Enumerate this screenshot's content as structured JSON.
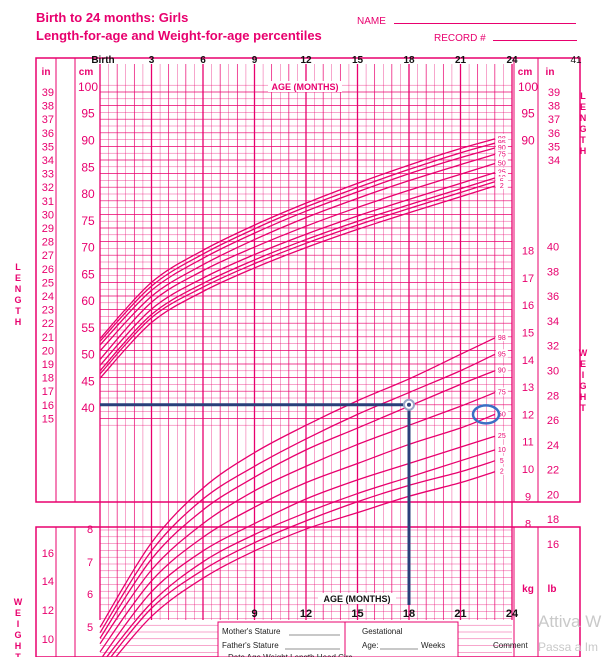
{
  "header": {
    "title_line1": "Birth to 24 months: Girls",
    "title_line2": "Length-for-age and Weight-for-age percentiles",
    "name_label": "NAME",
    "record_label": "RECORD #"
  },
  "chart_data": {
    "type": "line",
    "title": "Length-for-age and Weight-for-age percentiles",
    "x_axis": {
      "label": "AGE (MONTHS)",
      "range": [
        0,
        24
      ],
      "top_ticks": [
        "Birth",
        "3",
        "6",
        "9",
        "12",
        "15",
        "18",
        "21",
        "24"
      ],
      "bottom_ticks": [
        "9",
        "12",
        "15",
        "18",
        "21",
        "24"
      ]
    },
    "length_axis": {
      "cm_ticks": [
        "100",
        "95",
        "90",
        "85",
        "80",
        "75",
        "70",
        "65",
        "60",
        "55",
        "50",
        "45",
        "40"
      ],
      "in_ticks": [
        "39",
        "38",
        "37",
        "36",
        "35",
        "34",
        "33",
        "32",
        "31",
        "30",
        "29",
        "28",
        "27",
        "26",
        "25",
        "24",
        "23",
        "22",
        "21",
        "20",
        "19",
        "18",
        "17",
        "16",
        "15"
      ],
      "right_cm_ticks": [
        "100",
        "95",
        "90"
      ],
      "right_in_ticks": [
        "39",
        "38",
        "37",
        "36",
        "35",
        "34"
      ],
      "side_label": [
        "L",
        "E",
        "N",
        "G",
        "T",
        "H"
      ]
    },
    "weight_axis": {
      "kg_ticks": [
        "18",
        "17",
        "16",
        "15",
        "14",
        "13",
        "12",
        "11",
        "10",
        "9",
        "8",
        "7",
        "6",
        "5"
      ],
      "lb_ticks": [
        "40",
        "38",
        "36",
        "34",
        "32",
        "30",
        "28",
        "26",
        "24",
        "22",
        "20",
        "18",
        "16",
        "14",
        "12",
        "10"
      ],
      "right_kg_ticks": [
        "18",
        "17",
        "16",
        "15",
        "14",
        "13",
        "12",
        "11",
        "10",
        "9",
        "8"
      ],
      "right_lb_ticks": [
        "40",
        "38",
        "36",
        "34",
        "32",
        "30",
        "28",
        "26",
        "24",
        "22",
        "20",
        "18",
        "16"
      ],
      "unit_kg": "kg",
      "unit_lb": "lb",
      "unit_cm": "cm",
      "unit_in": "in",
      "side_label": [
        "W",
        "E",
        "I",
        "G",
        "H",
        "T"
      ]
    },
    "length_series": [
      {
        "name": "98",
        "x": [
          0,
          3,
          6,
          9,
          12,
          15,
          18,
          21,
          23
        ],
        "y": [
          53.0,
          63.5,
          69.5,
          74.2,
          78.3,
          82.0,
          85.4,
          88.5,
          90.3
        ]
      },
      {
        "name": "95",
        "x": [
          0,
          3,
          6,
          9,
          12,
          15,
          18,
          21,
          23
        ],
        "y": [
          52.5,
          62.8,
          68.8,
          73.5,
          77.6,
          81.2,
          84.6,
          87.7,
          89.5
        ]
      },
      {
        "name": "90",
        "x": [
          0,
          3,
          6,
          9,
          12,
          15,
          18,
          21,
          23
        ],
        "y": [
          51.8,
          62.0,
          68.0,
          72.7,
          76.8,
          80.4,
          83.8,
          86.8,
          88.6
        ]
      },
      {
        "name": "75",
        "x": [
          0,
          3,
          6,
          9,
          12,
          15,
          18,
          21,
          23
        ],
        "y": [
          50.7,
          60.9,
          66.8,
          71.5,
          75.6,
          79.2,
          82.5,
          85.5,
          87.4
        ]
      },
      {
        "name": "50",
        "x": [
          0,
          3,
          6,
          9,
          12,
          15,
          18,
          21,
          23
        ],
        "y": [
          49.1,
          59.8,
          65.7,
          70.1,
          74.0,
          77.5,
          80.7,
          83.7,
          85.7
        ]
      },
      {
        "name": "25",
        "x": [
          0,
          3,
          6,
          9,
          12,
          15,
          18,
          21,
          23
        ],
        "y": [
          48.0,
          58.5,
          64.3,
          68.7,
          72.5,
          75.9,
          79.0,
          82.0,
          84.0
        ]
      },
      {
        "name": "10",
        "x": [
          0,
          3,
          6,
          9,
          12,
          15,
          18,
          21,
          23
        ],
        "y": [
          47.0,
          57.5,
          63.3,
          67.7,
          71.5,
          74.9,
          78.0,
          81.0,
          83.0
        ]
      },
      {
        "name": "5",
        "x": [
          0,
          3,
          6,
          9,
          12,
          15,
          18,
          21,
          23
        ],
        "y": [
          46.4,
          56.9,
          62.6,
          67.0,
          70.8,
          74.2,
          77.3,
          80.3,
          82.3
        ]
      },
      {
        "name": "2",
        "x": [
          0,
          3,
          6,
          9,
          12,
          15,
          18,
          21,
          23
        ],
        "y": [
          45.6,
          56.0,
          61.8,
          66.2,
          70.0,
          73.4,
          76.5,
          79.5,
          81.5
        ]
      }
    ],
    "weight_series": [
      {
        "name": "98",
        "x": [
          0,
          3,
          6,
          9,
          12,
          15,
          18,
          21,
          23
        ],
        "y": [
          4.2,
          7.3,
          9.3,
          10.6,
          11.6,
          12.5,
          13.3,
          14.2,
          14.8
        ]
      },
      {
        "name": "95",
        "x": [
          0,
          3,
          6,
          9,
          12,
          15,
          18,
          21,
          23
        ],
        "y": [
          4.0,
          7.0,
          8.9,
          10.1,
          11.1,
          12.0,
          12.8,
          13.6,
          14.2
        ]
      },
      {
        "name": "90",
        "x": [
          0,
          3,
          6,
          9,
          12,
          15,
          18,
          21,
          23
        ],
        "y": [
          3.8,
          6.7,
          8.5,
          9.7,
          10.7,
          11.5,
          12.3,
          13.1,
          13.6
        ]
      },
      {
        "name": "75",
        "x": [
          0,
          3,
          6,
          9,
          12,
          15,
          18,
          21,
          23
        ],
        "y": [
          3.6,
          6.3,
          8.0,
          9.2,
          10.1,
          10.9,
          11.6,
          12.3,
          12.8
        ]
      },
      {
        "name": "50",
        "x": [
          0,
          3,
          6,
          9,
          12,
          15,
          18,
          21,
          23
        ],
        "y": [
          3.3,
          5.9,
          7.5,
          8.6,
          9.5,
          10.2,
          10.9,
          11.5,
          12.0
        ]
      },
      {
        "name": "25",
        "x": [
          0,
          3,
          6,
          9,
          12,
          15,
          18,
          21,
          23
        ],
        "y": [
          3.0,
          5.5,
          7.0,
          8.0,
          8.9,
          9.6,
          10.2,
          10.8,
          11.2
        ]
      },
      {
        "name": "10",
        "x": [
          0,
          3,
          6,
          9,
          12,
          15,
          18,
          21,
          23
        ],
        "y": [
          2.8,
          5.1,
          6.6,
          7.6,
          8.4,
          9.1,
          9.7,
          10.3,
          10.7
        ]
      },
      {
        "name": "5",
        "x": [
          0,
          3,
          6,
          9,
          12,
          15,
          18,
          21,
          23
        ],
        "y": [
          2.6,
          4.9,
          6.3,
          7.3,
          8.1,
          8.8,
          9.4,
          9.9,
          10.3
        ]
      },
      {
        "name": "2",
        "x": [
          0,
          3,
          6,
          9,
          12,
          15,
          18,
          21,
          23
        ],
        "y": [
          2.4,
          4.6,
          6.0,
          7.0,
          7.8,
          8.4,
          9.0,
          9.5,
          9.9
        ]
      }
    ],
    "annotation": {
      "marker_point": {
        "age_months": 18,
        "length_in": 16
      },
      "circled_label": "50"
    },
    "colors": {
      "chart": "#e8006e",
      "annotation": "#2a3f7a",
      "circle": "#3a6fc4"
    }
  },
  "footer": {
    "mothers_stature": "Mother's Stature",
    "fathers_stature": "Father's Stature",
    "gestational": "Gestational",
    "age": "Age:",
    "weeks": "Weeks",
    "comment": "Comment",
    "partial_row": "Date       Age      Weight     Length     Head Circ.",
    "watermark_1": "Attiva W",
    "watermark_2": "Passa a Im"
  }
}
